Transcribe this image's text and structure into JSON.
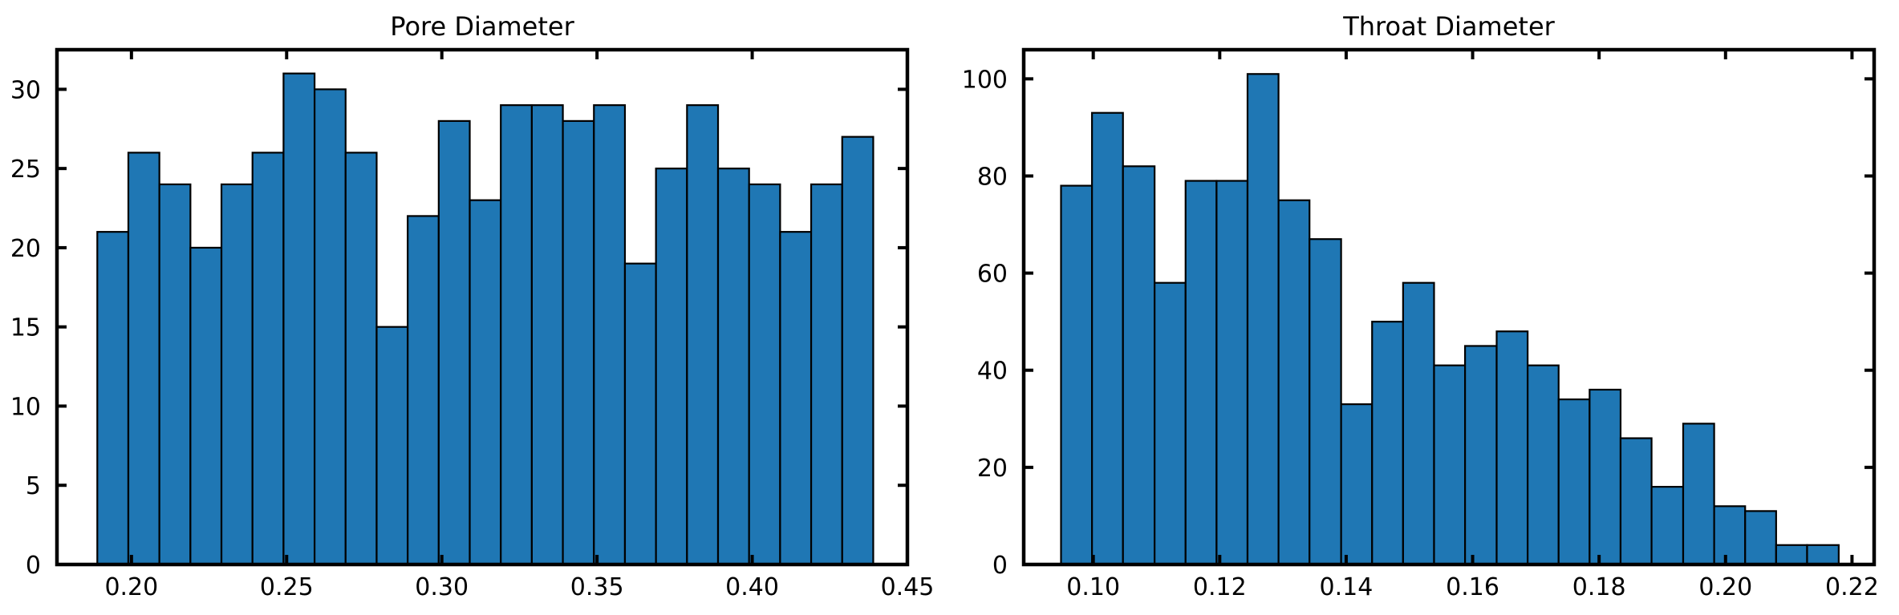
{
  "chart_data": [
    {
      "type": "bar",
      "title": "Pore Diameter",
      "xlabel": "",
      "ylabel": "",
      "xlim": [
        0.176,
        0.45
      ],
      "ylim": [
        0,
        32.5
      ],
      "bin_edges": [
        0.189,
        0.199,
        0.209,
        0.219,
        0.229,
        0.239,
        0.249,
        0.259,
        0.269,
        0.279,
        0.289,
        0.299,
        0.309,
        0.319,
        0.329,
        0.339,
        0.349,
        0.359,
        0.369,
        0.379,
        0.389,
        0.399,
        0.409,
        0.419,
        0.429,
        0.439
      ],
      "values": [
        21,
        26,
        24,
        20,
        24,
        26,
        31,
        30,
        26,
        15,
        22,
        28,
        23,
        29,
        29,
        28,
        29,
        19,
        25,
        29,
        25,
        24,
        21,
        24,
        27
      ],
      "x_ticks": [
        0.2,
        0.25,
        0.3,
        0.35,
        0.4,
        0.45
      ],
      "x_tick_labels": [
        "0.20",
        "0.25",
        "0.30",
        "0.35",
        "0.40",
        "0.45"
      ],
      "y_ticks": [
        0,
        5,
        10,
        15,
        20,
        25,
        30
      ],
      "y_tick_labels": [
        "0",
        "5",
        "10",
        "15",
        "20",
        "25",
        "30"
      ],
      "bar_color": "#1f77b4",
      "edge_color": "#000000",
      "grid": false,
      "legend": "none"
    },
    {
      "type": "bar",
      "title": "Throat Diameter",
      "xlabel": "",
      "ylabel": "",
      "xlim": [
        0.089,
        0.2235
      ],
      "ylim": [
        0,
        106
      ],
      "bin_edges": [
        0.0949,
        0.0998,
        0.1047,
        0.1097,
        0.1146,
        0.1195,
        0.1244,
        0.1293,
        0.1342,
        0.1392,
        0.1441,
        0.149,
        0.1539,
        0.1588,
        0.1638,
        0.1687,
        0.1736,
        0.1785,
        0.1834,
        0.1883,
        0.1933,
        0.1982,
        0.2031,
        0.208,
        0.2129,
        0.2179
      ],
      "values": [
        78,
        93,
        82,
        58,
        79,
        79,
        101,
        75,
        67,
        33,
        50,
        58,
        41,
        45,
        48,
        41,
        34,
        36,
        26,
        16,
        29,
        12,
        11,
        4,
        4
      ],
      "x_ticks": [
        0.1,
        0.12,
        0.14,
        0.16,
        0.18,
        0.2,
        0.22
      ],
      "x_tick_labels": [
        "0.10",
        "0.12",
        "0.14",
        "0.16",
        "0.18",
        "0.20",
        "0.22"
      ],
      "y_ticks": [
        0,
        20,
        40,
        60,
        80,
        100
      ],
      "y_tick_labels": [
        "0",
        "20",
        "40",
        "60",
        "80",
        "100"
      ],
      "bar_color": "#1f77b4",
      "edge_color": "#000000",
      "grid": false,
      "legend": "none"
    }
  ]
}
